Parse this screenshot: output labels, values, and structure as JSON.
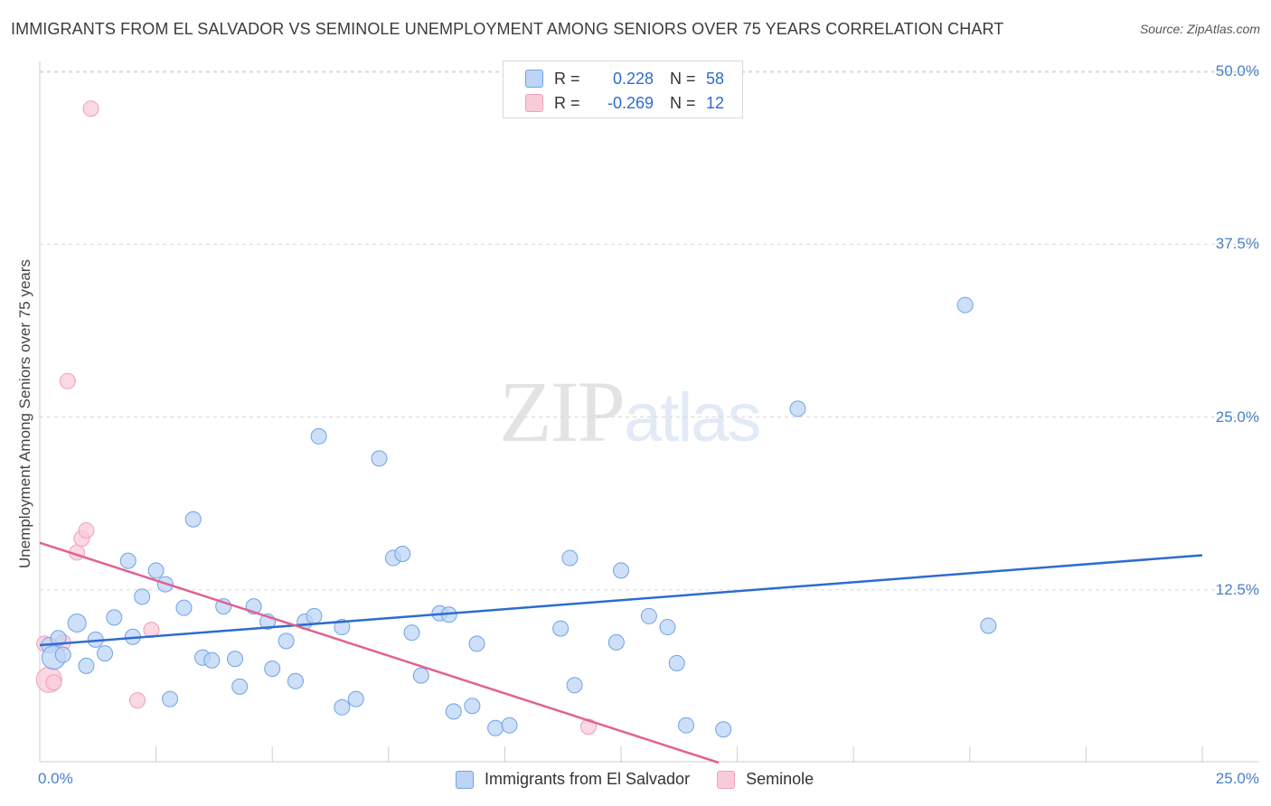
{
  "title": "IMMIGRANTS FROM EL SALVADOR VS SEMINOLE UNEMPLOYMENT AMONG SENIORS OVER 75 YEARS CORRELATION CHART",
  "source": "Source: ZipAtlas.com",
  "watermark": {
    "zip": "ZIP",
    "atlas": "atlas"
  },
  "legend_top": {
    "series1": {
      "r_label": "R =",
      "r_value": "0.228",
      "n_label": "N =",
      "n_value": "58"
    },
    "series2": {
      "r_label": "R =",
      "r_value": "-0.269",
      "n_label": "N =",
      "n_value": "12"
    }
  },
  "chart_data": {
    "type": "scatter",
    "title": "IMMIGRANTS FROM EL SALVADOR VS SEMINOLE UNEMPLOYMENT AMONG SENIORS OVER 75 YEARS CORRELATION CHART",
    "xlabel": "",
    "ylabel": "Unemployment Among Seniors over 75 years",
    "xlim": [
      0,
      25
    ],
    "ylim": [
      0,
      50
    ],
    "x_tick_labels": [
      "0.0%",
      "25.0%"
    ],
    "y_ticks": [
      12.5,
      25.0,
      37.5,
      50.0
    ],
    "y_tick_labels": [
      "12.5%",
      "25.0%",
      "37.5%",
      "50.0%"
    ],
    "grid": "horizontal dashed",
    "legend_position": "bottom-center",
    "series": [
      {
        "name": "Immigrants from El Salvador",
        "color": "#6fa3e6",
        "fill": "#bdd4f5",
        "r": 0.228,
        "n": 58,
        "trend": {
          "x": [
            0,
            25
          ],
          "y": [
            8.5,
            15.0
          ]
        },
        "points": [
          [
            0.2,
            8.5
          ],
          [
            0.3,
            7.6
          ],
          [
            0.4,
            9.0
          ],
          [
            0.5,
            7.8
          ],
          [
            0.8,
            10.1
          ],
          [
            1.0,
            7.0
          ],
          [
            1.2,
            8.9
          ],
          [
            1.4,
            7.9
          ],
          [
            1.6,
            10.5
          ],
          [
            1.9,
            14.6
          ],
          [
            2.0,
            9.1
          ],
          [
            2.2,
            12.0
          ],
          [
            2.5,
            13.9
          ],
          [
            2.7,
            12.9
          ],
          [
            2.8,
            4.6
          ],
          [
            3.1,
            11.2
          ],
          [
            3.3,
            17.6
          ],
          [
            3.5,
            7.6
          ],
          [
            3.7,
            7.4
          ],
          [
            3.95,
            11.3
          ],
          [
            4.2,
            7.5
          ],
          [
            4.3,
            5.5
          ],
          [
            4.6,
            11.3
          ],
          [
            4.9,
            10.2
          ],
          [
            5.0,
            6.8
          ],
          [
            5.3,
            8.8
          ],
          [
            5.5,
            5.9
          ],
          [
            5.7,
            10.2
          ],
          [
            5.9,
            10.6
          ],
          [
            6.0,
            23.6
          ],
          [
            6.5,
            9.8
          ],
          [
            6.5,
            4.0
          ],
          [
            6.8,
            4.6
          ],
          [
            7.3,
            22.0
          ],
          [
            7.6,
            14.8
          ],
          [
            7.8,
            15.1
          ],
          [
            8.0,
            9.4
          ],
          [
            8.2,
            6.3
          ],
          [
            8.6,
            10.8
          ],
          [
            8.8,
            10.7
          ],
          [
            8.9,
            3.7
          ],
          [
            9.3,
            4.1
          ],
          [
            9.4,
            8.6
          ],
          [
            9.8,
            2.5
          ],
          [
            10.1,
            2.7
          ],
          [
            11.2,
            9.7
          ],
          [
            11.4,
            14.8
          ],
          [
            11.5,
            5.6
          ],
          [
            12.4,
            8.7
          ],
          [
            12.5,
            13.9
          ],
          [
            13.1,
            10.6
          ],
          [
            13.5,
            9.8
          ],
          [
            13.7,
            7.2
          ],
          [
            13.9,
            2.7
          ],
          [
            14.7,
            2.4
          ],
          [
            16.3,
            25.6
          ],
          [
            19.9,
            33.1
          ],
          [
            20.4,
            9.9
          ]
        ]
      },
      {
        "name": "Seminole",
        "color": "#eea1b9",
        "fill": "#f9cbd9",
        "r": -0.269,
        "n": 12,
        "trend": {
          "x": [
            0,
            14.6
          ],
          "y": [
            15.9,
            0
          ]
        },
        "points": [
          [
            0.1,
            8.6
          ],
          [
            0.2,
            6.0
          ],
          [
            0.3,
            5.8
          ],
          [
            0.5,
            8.7
          ],
          [
            0.6,
            27.6
          ],
          [
            0.8,
            15.2
          ],
          [
            0.9,
            16.2
          ],
          [
            1.0,
            16.8
          ],
          [
            1.1,
            47.3
          ],
          [
            2.1,
            4.5
          ],
          [
            2.4,
            9.6
          ],
          [
            11.8,
            2.6
          ]
        ]
      }
    ]
  }
}
